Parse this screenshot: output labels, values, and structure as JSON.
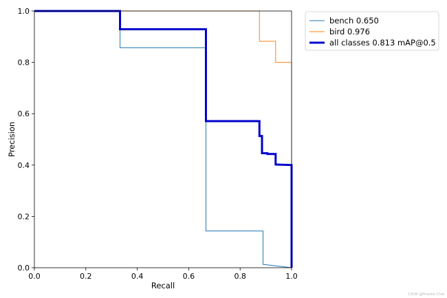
{
  "chart_data": {
    "type": "line",
    "xlabel": "Recall",
    "ylabel": "Precision",
    "xlim": [
      0,
      1
    ],
    "ylim": [
      0,
      1
    ],
    "xticks": [
      "0.0",
      "0.2",
      "0.4",
      "0.6",
      "0.8",
      "1.0"
    ],
    "yticks": [
      "0.0",
      "0.2",
      "0.4",
      "0.6",
      "0.8",
      "1.0"
    ],
    "grid": false,
    "legend_position": "outside-upper-right",
    "series": [
      {
        "name": "bench 0.650",
        "color": "#1f77b4",
        "linewidth": "thin",
        "x": [
          0,
          0.333,
          0.333,
          0.667,
          0.667,
          0.889,
          0.889,
          1.0
        ],
        "y": [
          1.0,
          1.0,
          0.857,
          0.857,
          0.143,
          0.143,
          0.013,
          0.0
        ]
      },
      {
        "name": "bird 0.976",
        "color": "#ff7f0e",
        "linewidth": "thin",
        "x": [
          0,
          0.875,
          0.875,
          0.938,
          0.938,
          1.0,
          1.0
        ],
        "y": [
          1.0,
          1.0,
          0.882,
          0.882,
          0.8,
          0.8,
          0.0
        ]
      },
      {
        "name": "all classes 0.813 mAP@0.5",
        "color": "#0000cd",
        "linewidth": "thick",
        "x": [
          0,
          0.333,
          0.333,
          0.667,
          0.667,
          0.875,
          0.875,
          0.885,
          0.885,
          0.906,
          0.906,
          0.938,
          0.938,
          1.0,
          1.0
        ],
        "y": [
          1.0,
          1.0,
          0.929,
          0.929,
          0.571,
          0.571,
          0.513,
          0.513,
          0.446,
          0.446,
          0.443,
          0.443,
          0.402,
          0.4,
          0.0
        ]
      }
    ]
  },
  "watermark": "CSDN @Pheobe Chat"
}
